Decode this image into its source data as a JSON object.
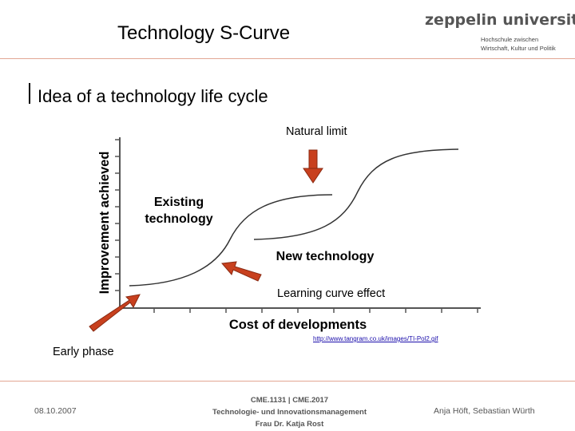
{
  "header": {
    "title": "Technology S-Curve",
    "logo_name": "zeppelin university",
    "logo_sub_line1": "Hochschule zwischen",
    "logo_sub_line2": "Wirtschaft, Kultur und Politik"
  },
  "slide": {
    "subtitle": "Idea of a technology life cycle"
  },
  "diagram": {
    "y_axis_label": "Improvement achieved",
    "x_axis_label": "Cost of developments",
    "curve1_label_line1": "Existing",
    "curve1_label_line2": "technology",
    "curve2_label": "New technology",
    "annotation_natural_limit": "Natural limit",
    "annotation_learning_curve": "Learning curve effect",
    "annotation_early_phase": "Early phase",
    "arrow_color": "#c8401e",
    "source_url": "http://www.tangram.co.uk/images/TI-Pol2.gif"
  },
  "footer": {
    "date": "08.10.2007",
    "course_line1": "CME.1131 | CME.2017",
    "course_line2": "Technologie- und Innovationsmanagement",
    "course_line3": "Frau Dr. Katja Rost",
    "authors": "Anja Höft, Sebastian Würth"
  }
}
